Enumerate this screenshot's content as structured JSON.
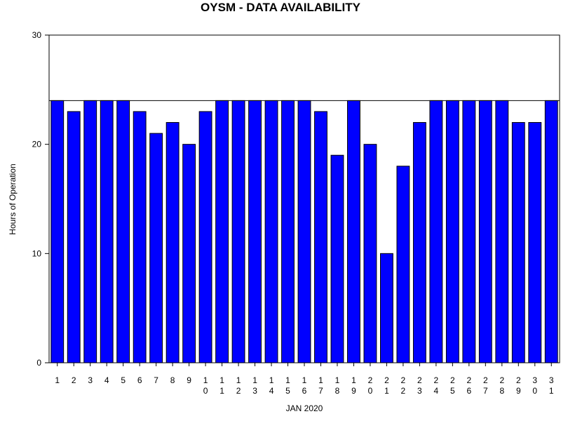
{
  "chart_data": {
    "type": "bar",
    "title": "OYSM - DATA AVAILABILITY",
    "xlabel": "JAN 2020",
    "ylabel": "Hours of Operation",
    "categories": [
      "1",
      "2",
      "3",
      "4",
      "5",
      "6",
      "7",
      "8",
      "9",
      "10",
      "11",
      "12",
      "13",
      "14",
      "15",
      "16",
      "17",
      "18",
      "19",
      "20",
      "21",
      "22",
      "23",
      "24",
      "25",
      "26",
      "27",
      "28",
      "29",
      "30",
      "31"
    ],
    "values": [
      24,
      23,
      24,
      24,
      24,
      23,
      21,
      22,
      20,
      23,
      24,
      24,
      24,
      24,
      24,
      24,
      23,
      19,
      24,
      20,
      10,
      18,
      22,
      24,
      24,
      24,
      24,
      24,
      22,
      22,
      24
    ],
    "ylim": [
      0,
      30
    ],
    "yticks": [
      0,
      10,
      20,
      30
    ],
    "reference_line": 24,
    "grid": false,
    "colors": {
      "bar_fill": "#0000ff",
      "bar_stroke": "#000000",
      "axis": "#000000",
      "reference_line": "#000000"
    }
  }
}
